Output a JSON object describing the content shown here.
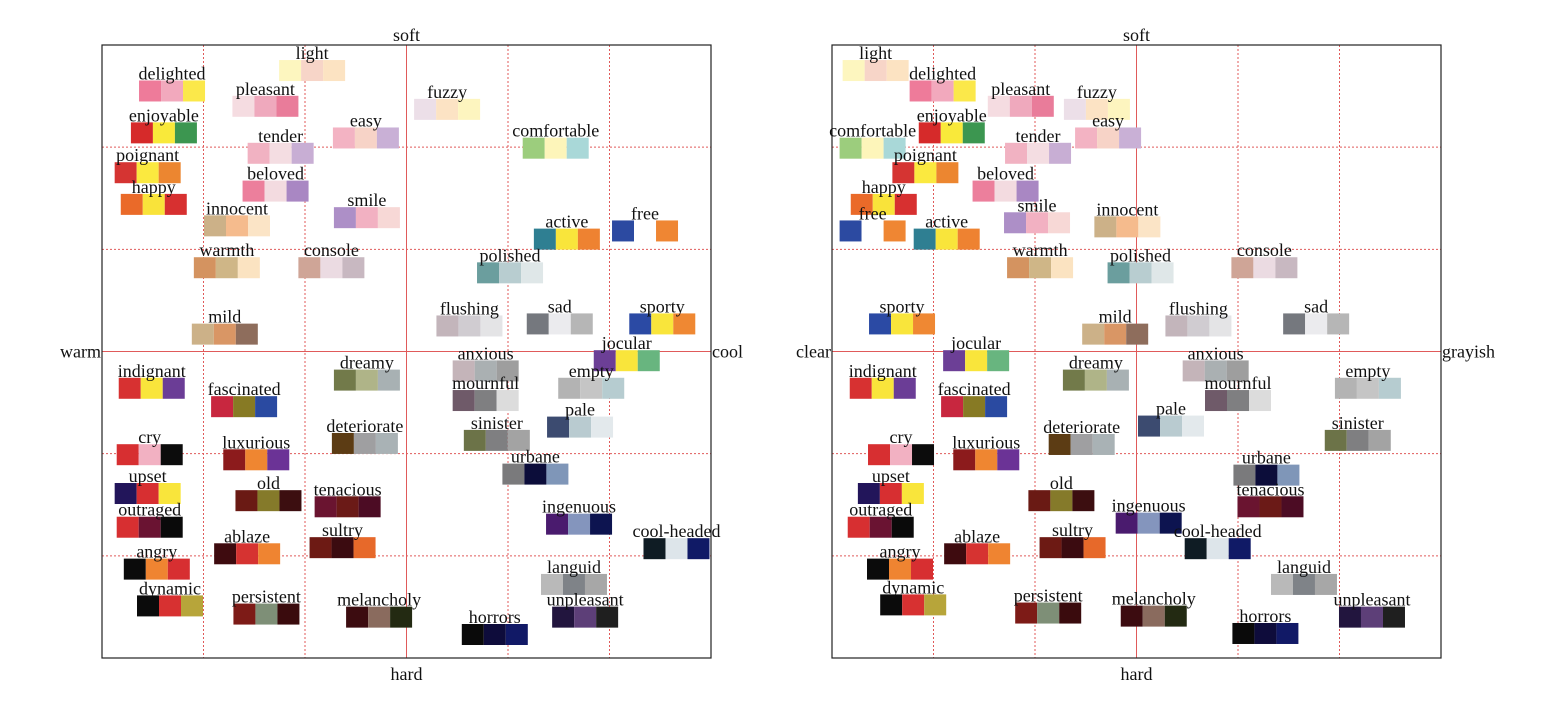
{
  "chart_data": [
    {
      "type": "scatter",
      "axis_labels": {
        "top": "soft",
        "bottom": "hard",
        "left": "warm",
        "right": "cool"
      },
      "xlim": [
        -3,
        3
      ],
      "ylim": [
        -3,
        3
      ],
      "xticks": [
        -3,
        -2,
        -1,
        0,
        1,
        2,
        3
      ],
      "yticks": [
        -3,
        -2,
        -1,
        0,
        1,
        2,
        3
      ],
      "grid": true,
      "labels": [
        "delighted",
        "light",
        "pleasant",
        "fuzzy",
        "enjoyable",
        "easy",
        "comfortable",
        "tender",
        "poignant",
        "beloved",
        "happy",
        "smile",
        "innocent",
        "active",
        "free",
        "warmth",
        "console",
        "polished",
        "mild",
        "flushing",
        "sad",
        "sporty",
        "jocular",
        "indignant",
        "dreamy",
        "anxious",
        "empty",
        "fascinated",
        "mournful",
        "pale",
        "deteriorate",
        "sinister",
        "cry",
        "luxurious",
        "urbane",
        "upset",
        "old",
        "tenacious",
        "ingenuous",
        "outraged",
        "cool-headed",
        "sultry",
        "ablaze",
        "angry",
        "languid",
        "dynamic",
        "persistent",
        "melancholy",
        "unpleasant",
        "horrors"
      ],
      "x": [
        -2.31,
        -0.93,
        -1.39,
        0.4,
        -2.39,
        -0.4,
        1.47,
        -1.24,
        -2.55,
        -1.29,
        -2.49,
        -0.39,
        -1.67,
        1.58,
        2.35,
        -1.77,
        -0.74,
        1.02,
        -1.79,
        0.62,
        1.51,
        2.52,
        2.17,
        -2.51,
        -0.39,
        0.78,
        1.82,
        -1.6,
        0.78,
        1.71,
        -0.41,
        0.89,
        -2.53,
        -1.48,
        1.27,
        -2.55,
        -1.36,
        -0.58,
        1.7,
        -2.53,
        2.66,
        -0.63,
        -1.57,
        -2.46,
        1.65,
        -2.33,
        -1.38,
        -0.27,
        1.76,
        0.87
      ],
      "y": [
        2.55,
        2.75,
        2.4,
        2.37,
        2.14,
        2.09,
        1.99,
        1.94,
        1.75,
        1.57,
        1.44,
        1.31,
        1.23,
        1.1,
        1.18,
        0.82,
        0.82,
        0.77,
        0.17,
        0.25,
        0.27,
        0.27,
        -0.09,
        -0.36,
        -0.28,
        -0.19,
        -0.36,
        -0.54,
        -0.48,
        -0.74,
        -0.9,
        -0.87,
        -1.01,
        -1.06,
        -1.2,
        -1.39,
        -1.46,
        -1.52,
        -1.69,
        -1.72,
        -1.93,
        -1.92,
        -1.98,
        -2.13,
        -2.28,
        -2.49,
        -2.57,
        -2.6,
        -2.6,
        -2.77
      ],
      "colors": [
        [
          "#ee7b9a",
          "#f2a9bd",
          "#fbe84a"
        ],
        [
          "#fdf6bf",
          "#f7d5c8",
          "#fce3c2"
        ],
        [
          "#f5dce1",
          "#efa9bd",
          "#e97c9a"
        ],
        [
          "#ecdfe8",
          "#fce3c4",
          "#fdf5bf"
        ],
        [
          "#d62a2a",
          "#f9e93a",
          "#3c9650"
        ],
        [
          "#f3b3c3",
          "#f7d3c7",
          "#c9b0d6"
        ],
        [
          "#9ccd7d",
          "#fdf5ba",
          "#a9d8d8"
        ],
        [
          "#f1b2c2",
          "#f4dde2",
          "#c8aed4"
        ],
        [
          "#d53432",
          "#fbe93f",
          "#ec8630"
        ],
        [
          "#ec7f9c",
          "#f3dbe0",
          "#a987c3"
        ],
        [
          "#ea6a29",
          "#f9e33a",
          "#d73030"
        ],
        [
          "#ad8fc7",
          "#f2b1c2",
          "#f7d8d6"
        ],
        [
          "#ccb188",
          "#f5bb8d",
          "#fbe4c6"
        ],
        [
          "#2f7f92",
          "#f9e53b",
          "#ee8231"
        ],
        [
          "#2c4aa1",
          "#ffffff",
          "#ef8633"
        ],
        [
          "#d49360",
          "#cfb687",
          "#fbe3c1"
        ],
        [
          "#cfa597",
          "#ebdbe2",
          "#c8b8c1"
        ],
        [
          "#6b9e9e",
          "#b8cdd0",
          "#dfe7e8"
        ],
        [
          "#ccb188",
          "#d99665",
          "#8e6d5c"
        ],
        [
          "#c3b5bb",
          "#d0ccd1",
          "#e4e4e6"
        ],
        [
          "#75787e",
          "#ebebee",
          "#b6b6b6"
        ],
        [
          "#2b4aa4",
          "#f9e53b",
          "#ef8833"
        ],
        [
          "#6c3f96",
          "#f9e53b",
          "#68b57f"
        ],
        [
          "#d73131",
          "#f9e53b",
          "#6b3d96"
        ],
        [
          "#727a4a",
          "#afb488",
          "#a8b1b3"
        ],
        [
          "#c4b4b9",
          "#aab0b2",
          "#9e9e9e"
        ],
        [
          "#b3b3b3",
          "#c5c5c5",
          "#b6ccd0"
        ],
        [
          "#c8273f",
          "#877a24",
          "#2a4aa1"
        ],
        [
          "#6f5a69",
          "#7f7f81",
          "#dcdcdc"
        ],
        [
          "#3c4b70",
          "#b9cbd0",
          "#e3e9ec"
        ],
        [
          "#5c3c14",
          "#9f9fa1",
          "#a9b2b5"
        ],
        [
          "#6c7348",
          "#7f7f81",
          "#a3a3a3"
        ],
        [
          "#d72f31",
          "#f2b1c2",
          "#0c0c0c"
        ],
        [
          "#8c1b1c",
          "#ef8631",
          "#6b3396"
        ],
        [
          "#7a7a7c",
          "#0c0d3a",
          "#7f96b8"
        ],
        [
          "#22155a",
          "#d72f31",
          "#f9e53b"
        ],
        [
          "#6a1a14",
          "#857a2a",
          "#3c0e10"
        ],
        [
          "#6a1430",
          "#6b1a17",
          "#4c0c24"
        ],
        [
          "#4a1b6e",
          "#8495bd",
          "#0d1450"
        ],
        [
          "#d72f31",
          "#6a1332",
          "#0a0a0a"
        ],
        [
          "#0f1c24",
          "#dde5ea",
          "#101a66"
        ],
        [
          "#6d1a14",
          "#3b0b10",
          "#e7692a"
        ],
        [
          "#3e0b0f",
          "#d63331",
          "#ef8431"
        ],
        [
          "#0b0b0b",
          "#ef8431",
          "#d72f31"
        ],
        [
          "#b9b9b9",
          "#7f8388",
          "#a7a7a7"
        ],
        [
          "#0b0b0b",
          "#d73131",
          "#b7a53a"
        ],
        [
          "#7d1b17",
          "#7e8f77",
          "#3a0b0d"
        ],
        [
          "#3c0c10",
          "#8a6b5e",
          "#232a12"
        ],
        [
          "#22153e",
          "#5d3f78",
          "#1f1f1f"
        ],
        [
          "#0a0a0a",
          "#0e0c3b",
          "#111966"
        ]
      ]
    },
    {
      "type": "scatter",
      "axis_labels": {
        "top": "soft",
        "bottom": "hard",
        "left": "clear",
        "right": "grayish"
      },
      "xlim": [
        -3,
        3
      ],
      "ylim": [
        -3,
        3
      ],
      "xticks": [
        -3,
        -2,
        -1,
        0,
        1,
        2,
        3
      ],
      "yticks": [
        -3,
        -2,
        -1,
        0,
        1,
        2,
        3
      ],
      "grid": true,
      "labels": [
        "light",
        "delighted",
        "pleasant",
        "fuzzy",
        "comfortable",
        "enjoyable",
        "tender",
        "easy",
        "poignant",
        "beloved",
        "happy",
        "smile",
        "innocent",
        "free",
        "active",
        "warmth",
        "polished",
        "console",
        "sporty",
        "mild",
        "flushing",
        "sad",
        "jocular",
        "indignant",
        "dreamy",
        "anxious",
        "empty",
        "fascinated",
        "mournful",
        "pale",
        "sinister",
        "deteriorate",
        "cry",
        "luxurious",
        "urbane",
        "upset",
        "old",
        "tenacious",
        "ingenuous",
        "outraged",
        "cool-headed",
        "sultry",
        "ablaze",
        "angry",
        "languid",
        "dynamic",
        "persistent",
        "melancholy",
        "unpleasant",
        "horrors"
      ],
      "x": [
        -2.57,
        -1.91,
        -1.14,
        -0.39,
        -2.6,
        -1.82,
        -0.97,
        -0.28,
        -2.08,
        -1.29,
        -2.49,
        -0.98,
        -0.09,
        -2.6,
        -1.87,
        -0.95,
        0.04,
        1.26,
        -2.31,
        -0.21,
        0.61,
        1.77,
        -1.58,
        -2.5,
        -0.4,
        0.78,
        2.28,
        -1.6,
        1.0,
        0.34,
        2.18,
        -0.54,
        -2.32,
        -1.48,
        1.28,
        -2.42,
        -0.74,
        1.32,
        0.12,
        -2.52,
        0.8,
        -0.63,
        -1.57,
        -2.33,
        1.65,
        -2.2,
        -0.87,
        0.17,
        2.32,
        1.27
      ],
      "y": [
        2.75,
        2.55,
        2.4,
        2.37,
        1.99,
        2.14,
        1.94,
        2.09,
        1.75,
        1.57,
        1.44,
        1.26,
        1.22,
        1.18,
        1.1,
        0.82,
        0.77,
        0.82,
        0.27,
        0.17,
        0.25,
        0.27,
        -0.09,
        -0.36,
        -0.28,
        -0.19,
        -0.36,
        -0.54,
        -0.48,
        -0.73,
        -0.87,
        -0.91,
        -1.01,
        -1.06,
        -1.21,
        -1.39,
        -1.46,
        -1.52,
        -1.68,
        -1.72,
        -1.93,
        -1.92,
        -1.98,
        -2.13,
        -2.28,
        -2.48,
        -2.56,
        -2.59,
        -2.6,
        -2.76
      ],
      "colors": [
        [
          "#fdf6bf",
          "#f7d5c8",
          "#fce3c2"
        ],
        [
          "#ee7b9a",
          "#f2a9bd",
          "#fbe84a"
        ],
        [
          "#f5dce1",
          "#efa9bd",
          "#e97c9a"
        ],
        [
          "#ecdfe8",
          "#fce3c4",
          "#fdf5bf"
        ],
        [
          "#9ccd7d",
          "#fdf5ba",
          "#a9d8d8"
        ],
        [
          "#d62a2a",
          "#f9e93a",
          "#3c9650"
        ],
        [
          "#f1b2c2",
          "#f4dde2",
          "#c8aed4"
        ],
        [
          "#f3b3c3",
          "#f7d3c7",
          "#c9b0d6"
        ],
        [
          "#d53432",
          "#fbe93f",
          "#ec8630"
        ],
        [
          "#ec7f9c",
          "#f3dbe0",
          "#a987c3"
        ],
        [
          "#ea6a29",
          "#f9e33a",
          "#d73030"
        ],
        [
          "#ad8fc7",
          "#f2b1c2",
          "#f7d8d6"
        ],
        [
          "#ccb188",
          "#f5bb8d",
          "#fbe4c6"
        ],
        [
          "#2c4aa1",
          "#ffffff",
          "#ef8633"
        ],
        [
          "#2f7f92",
          "#f9e53b",
          "#ee8231"
        ],
        [
          "#d49360",
          "#cfb687",
          "#fbe3c1"
        ],
        [
          "#6b9e9e",
          "#b8cdd0",
          "#dfe7e8"
        ],
        [
          "#cfa597",
          "#ebdbe2",
          "#c8b8c1"
        ],
        [
          "#2b4aa4",
          "#f9e53b",
          "#ef8833"
        ],
        [
          "#ccb188",
          "#d99665",
          "#8e6d5c"
        ],
        [
          "#c3b5bb",
          "#d0ccd1",
          "#e4e4e6"
        ],
        [
          "#75787e",
          "#ebebee",
          "#b6b6b6"
        ],
        [
          "#6c3f96",
          "#f9e53b",
          "#68b57f"
        ],
        [
          "#d73131",
          "#f9e53b",
          "#6b3d96"
        ],
        [
          "#727a4a",
          "#afb488",
          "#a8b1b3"
        ],
        [
          "#c4b4b9",
          "#aab0b2",
          "#9e9e9e"
        ],
        [
          "#b3b3b3",
          "#c5c5c5",
          "#b6ccd0"
        ],
        [
          "#c8273f",
          "#877a24",
          "#2a4aa1"
        ],
        [
          "#6f5a69",
          "#7f7f81",
          "#dcdcdc"
        ],
        [
          "#3c4b70",
          "#b9cbd0",
          "#e3e9ec"
        ],
        [
          "#6c7348",
          "#7f7f81",
          "#a3a3a3"
        ],
        [
          "#5c3c14",
          "#9f9fa1",
          "#a9b2b5"
        ],
        [
          "#d72f31",
          "#f2b1c2",
          "#0c0c0c"
        ],
        [
          "#8c1b1c",
          "#ef8631",
          "#6b3396"
        ],
        [
          "#7a7a7c",
          "#0c0d3a",
          "#7f96b8"
        ],
        [
          "#22155a",
          "#d72f31",
          "#f9e53b"
        ],
        [
          "#6a1a14",
          "#857a2a",
          "#3c0e10"
        ],
        [
          "#6a1430",
          "#6b1a17",
          "#4c0c24"
        ],
        [
          "#4a1b6e",
          "#8495bd",
          "#0d1450"
        ],
        [
          "#d72f31",
          "#6a1332",
          "#0a0a0a"
        ],
        [
          "#0f1c24",
          "#dde5ea",
          "#101a66"
        ],
        [
          "#6d1a14",
          "#3b0b10",
          "#e7692a"
        ],
        [
          "#3e0b0f",
          "#d63331",
          "#ef8431"
        ],
        [
          "#0b0b0b",
          "#ef8431",
          "#d72f31"
        ],
        [
          "#b9b9b9",
          "#7f8388",
          "#a7a7a7"
        ],
        [
          "#0b0b0b",
          "#d73131",
          "#b7a53a"
        ],
        [
          "#7d1b17",
          "#7e8f77",
          "#3a0b0d"
        ],
        [
          "#3c0c10",
          "#8a6b5e",
          "#232a12"
        ],
        [
          "#22153e",
          "#5d3f78",
          "#1f1f1f"
        ],
        [
          "#0a0a0a",
          "#0e0c3b",
          "#111966"
        ]
      ]
    }
  ]
}
